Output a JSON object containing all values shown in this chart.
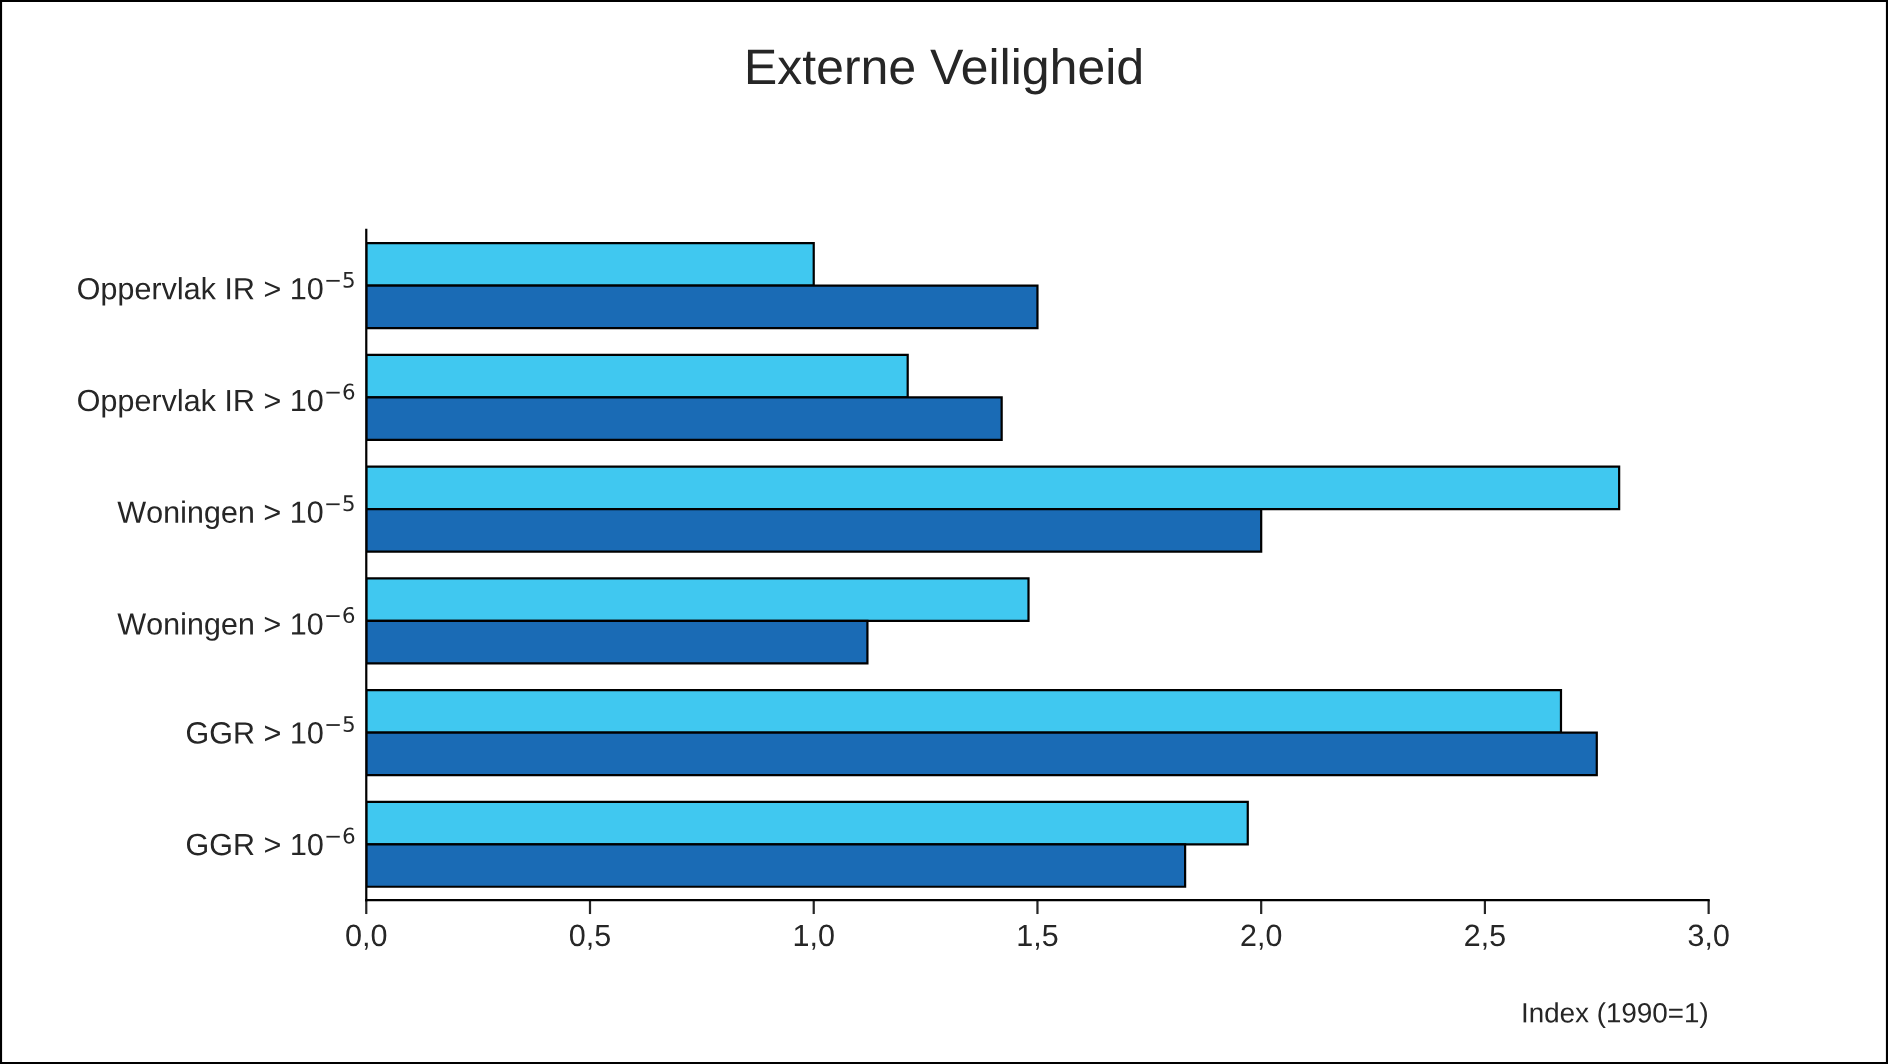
{
  "chart_data": {
    "type": "bar",
    "orientation": "horizontal",
    "title": "Externe Veiligheid",
    "xlabel": "Index (1990=1)",
    "categories": [
      "Oppervlak IR > 10$^{−5}$",
      "Oppervlak IR > 10$^{−6}$",
      "Woningen > 10$^{−5}$",
      "Woningen > 10$^{−6}$",
      "GGR > 10$^{−5}$",
      "GGR > 10$^{−6}$"
    ],
    "series": [
      {
        "color": "#40c8f0",
        "values": [
          1.0,
          1.21,
          2.8,
          1.48,
          2.67,
          1.97
        ]
      },
      {
        "color": "#1a6bb5",
        "values": [
          1.5,
          1.42,
          2.0,
          1.12,
          2.75,
          1.83
        ]
      }
    ],
    "xlim": [
      0,
      3
    ],
    "xticks": [
      {
        "value": 0,
        "label": "0,0"
      },
      {
        "value": 0.5,
        "label": "0,5"
      },
      {
        "value": 1,
        "label": "1,0"
      },
      {
        "value": 1.5,
        "label": "1,5"
      },
      {
        "value": 2,
        "label": "2,0"
      },
      {
        "value": 2.5,
        "label": "2,5"
      },
      {
        "value": 3,
        "label": "3,0"
      }
    ],
    "grid": false,
    "legend": false
  }
}
